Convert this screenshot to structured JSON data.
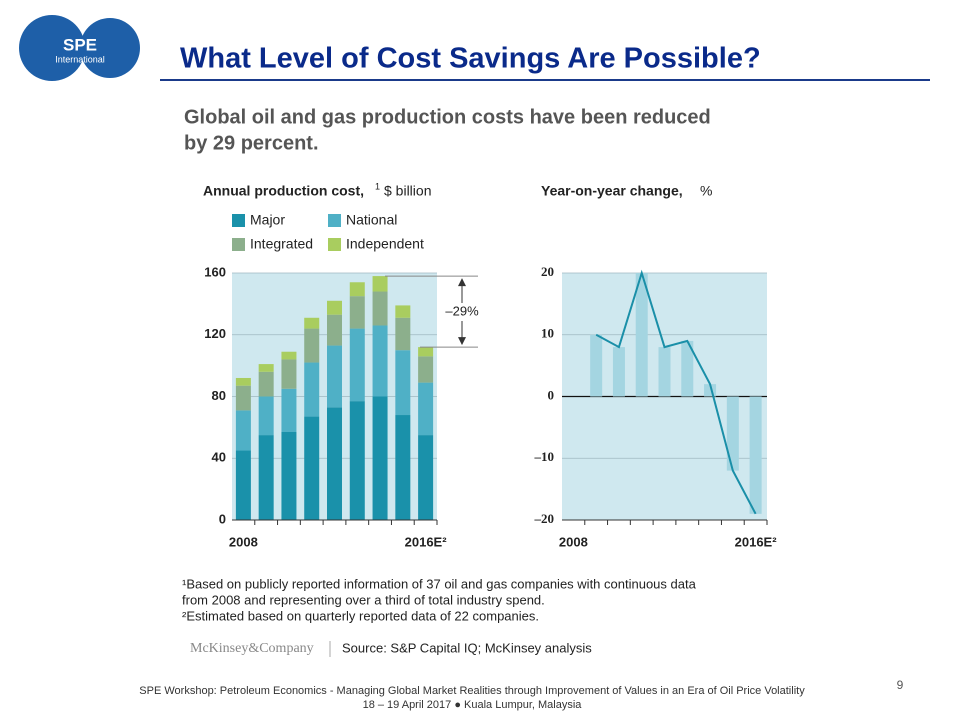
{
  "logo": {
    "name": "SPE",
    "sub": "International"
  },
  "title": "What Level of Cost Savings Are Possible?",
  "subtitle": [
    "Global oil and gas production costs have been reduced",
    "by 29 percent."
  ],
  "chart_data": [
    {
      "type": "stacked_bar",
      "title": "Annual production cost,",
      "title_note": "1",
      "unit": "$ billion",
      "categories": [
        "2008",
        null,
        null,
        null,
        null,
        null,
        null,
        null,
        "2016E²"
      ],
      "series": [
        {
          "name": "Major",
          "color": "#1a91aa",
          "values": [
            45,
            55,
            57,
            67,
            73,
            77,
            80,
            68,
            55
          ]
        },
        {
          "name": "National",
          "color": "#4fb0c6",
          "values": [
            26,
            25,
            28,
            35,
            40,
            47,
            46,
            42,
            34
          ]
        },
        {
          "name": "Integrated",
          "color": "#8caf8c",
          "values": [
            16,
            16,
            19,
            22,
            20,
            21,
            22,
            21,
            17
          ]
        },
        {
          "name": "Independent",
          "color": "#a9cd5f",
          "values": [
            5,
            5,
            5,
            7,
            9,
            9,
            10,
            8,
            6
          ]
        }
      ],
      "annotation": "–29%",
      "ylim": [
        0,
        160
      ],
      "yticks": [
        0,
        40,
        80,
        120,
        160
      ],
      "grid": true
    },
    {
      "type": "bar_line",
      "title": "Year-on-year change,",
      "unit": "%",
      "categories": [
        "2008",
        null,
        null,
        null,
        null,
        null,
        null,
        null,
        "2016E²"
      ],
      "values": [
        null,
        10,
        8,
        20,
        8,
        9,
        2,
        -12,
        -19
      ],
      "bar_color": "#a4d5e1",
      "color": "#1a8fa8",
      "ylim": [
        -20,
        20
      ],
      "yticks": [
        {
          "value": -20,
          "label": "–20"
        },
        {
          "value": -10,
          "label": "–10"
        },
        0,
        10,
        20
      ],
      "grid": true
    }
  ],
  "footnotes": [
    "¹Based on publicly reported information of 37 oil and gas companies with continuous data",
    " from 2008 and representing over a third of total industry spend.",
    "²Estimated based on quarterly reported data of 22 companies."
  ],
  "brand": "McKinsey&Company",
  "source": "Source: S&P Capital IQ; McKinsey analysis",
  "footer": [
    "SPE Workshop: Petroleum Economics - Managing Global Market Realities through Improvement of Values in an Era of Oil Price Volatility",
    "18 – 19 April 2017 ● Kuala Lumpur, Malaysia"
  ],
  "page": "9"
}
